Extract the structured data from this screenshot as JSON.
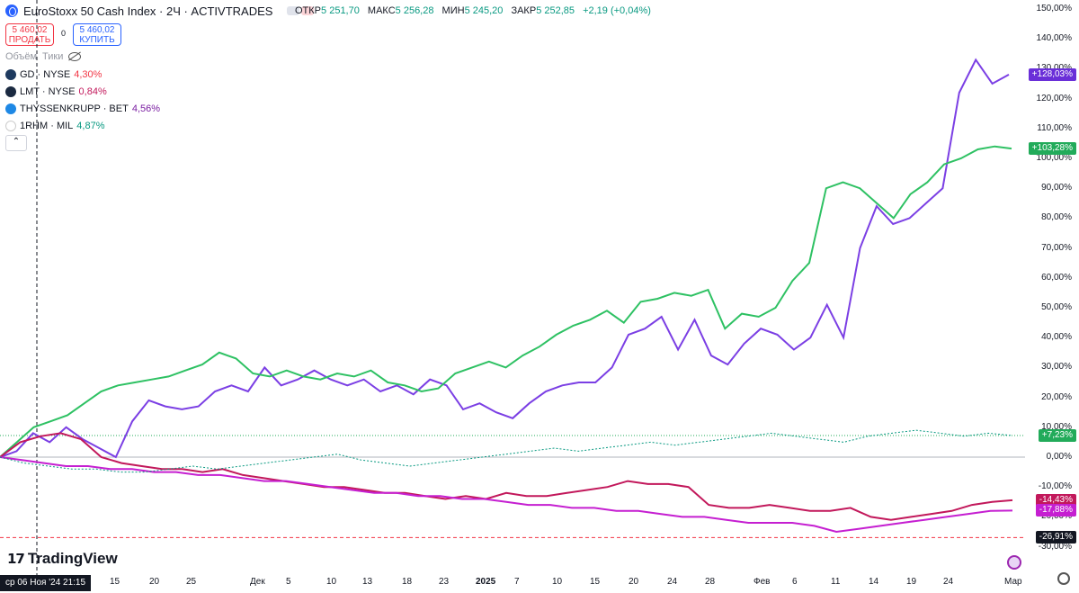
{
  "header": {
    "title": "EuroStoxx 50 Cash Index · 2Ч · ACTIVTRADES",
    "ohlc": [
      {
        "k": "ОТКР",
        "v": "5 251,70"
      },
      {
        "k": "МАКС",
        "v": "5 256,28"
      },
      {
        "k": "МИН",
        "v": "5 245,20"
      },
      {
        "k": "ЗАКР",
        "v": "5 252,85"
      }
    ],
    "change": "+2,19 (+0,04%)"
  },
  "trade": {
    "sell_price": "5 460,02",
    "sell_label": "ПРОДАТЬ",
    "spread": "0",
    "buy_price": "5 460,02",
    "buy_label": "КУПИТЬ"
  },
  "toggles": {
    "volume": "Объём",
    "ticks": "Тики"
  },
  "legend": [
    {
      "sym": "GD · NYSE",
      "pct": "4,30%",
      "color": "#f23645",
      "icon": "#1e3a5f"
    },
    {
      "sym": "LMT · NYSE",
      "pct": "0,84%",
      "color": "#c2185b",
      "icon": "#1b2a41"
    },
    {
      "sym": "THYSSENKRUPP · BET",
      "pct": "4,56%",
      "color": "#7b1fa2",
      "icon": "#1e88e5"
    },
    {
      "sym": "1RHM · MIL",
      "pct": "4,87%",
      "color": "#089981",
      "icon": "#ffffff"
    }
  ],
  "yaxis": [
    "150,00%",
    "140,00%",
    "130,00%",
    "120,00%",
    "110,00%",
    "100,00%",
    "90,00%",
    "80,00%",
    "70,00%",
    "60,00%",
    "50,00%",
    "40,00%",
    "30,00%",
    "20,00%",
    "10,00%",
    "0,00%",
    "-10,00%",
    "-20,00%",
    "-30,00%"
  ],
  "badges": [
    {
      "text": "+128,03%",
      "color": "#6a2fd8",
      "y": 128.03
    },
    {
      "text": "+103,28%",
      "color": "#22ab5a",
      "y": 103.28
    },
    {
      "text": "+7,23%",
      "color": "#22ab5a",
      "y": 7.23
    },
    {
      "text": "-14,43%",
      "color": "#c2185b",
      "y": -14.43
    },
    {
      "text": "-17,88%",
      "color": "#c51fd1",
      "y": -17.88
    },
    {
      "text": "-26,91%",
      "color": "#131722",
      "y": -26.91
    }
  ],
  "xaxis": [
    "15",
    "20",
    "25",
    "Дек",
    "5",
    "10",
    "13",
    "18",
    "23",
    "2025",
    "7",
    "10",
    "15",
    "20",
    "24",
    "28",
    "Фев",
    "6",
    "11",
    "14",
    "19",
    "24",
    "Мар"
  ],
  "crosshair_label": "ср 06 Ноя '24   21:15",
  "brand": "TradingView",
  "chart_data": {
    "type": "line",
    "ylim": [
      -30,
      150
    ],
    "x_count": 60,
    "series": [
      {
        "color": "#7b3fe4",
        "values": [
          0,
          2,
          8,
          5,
          10,
          6,
          3,
          0,
          12,
          19,
          17,
          16,
          17,
          22,
          24,
          22,
          30,
          24,
          26,
          29,
          26,
          24,
          26,
          22,
          24,
          21,
          26,
          24,
          16,
          18,
          15,
          13,
          18,
          22,
          24,
          25,
          25,
          30,
          41,
          43,
          47,
          36,
          46,
          34,
          31,
          38,
          43,
          41,
          36,
          40,
          51,
          40,
          70,
          84,
          78,
          80,
          85,
          90,
          122,
          133,
          125,
          128.03
        ]
      },
      {
        "color": "#2ec163",
        "values": [
          0,
          5,
          10,
          12,
          14,
          18,
          22,
          24,
          25,
          26,
          27,
          29,
          31,
          35,
          33,
          28,
          27,
          29,
          27,
          26,
          28,
          27,
          29,
          25,
          24,
          22,
          23,
          28,
          30,
          32,
          30,
          34,
          37,
          41,
          44,
          46,
          49,
          45,
          52,
          53,
          55,
          54,
          56,
          43,
          48,
          47,
          50,
          59,
          65,
          90,
          92,
          90,
          85,
          80,
          88,
          92,
          98,
          100,
          103,
          104,
          103.28
        ]
      },
      {
        "color": "#c2185b",
        "values": [
          0,
          5,
          7,
          8,
          6,
          0,
          -2,
          -3,
          -4,
          -4,
          -5,
          -4,
          -6,
          -7,
          -8,
          -9,
          -10,
          -10,
          -11,
          -12,
          -12,
          -13,
          -14,
          -13,
          -14,
          -12,
          -13,
          -13,
          -12,
          -11,
          -10,
          -8,
          -9,
          -9,
          -10,
          -16,
          -17,
          -17,
          -16,
          -17,
          -18,
          -18,
          -17,
          -20,
          -21,
          -20,
          -19,
          -18,
          -16,
          -15,
          -14.43
        ]
      },
      {
        "color": "#c51fd1",
        "values": [
          0,
          -1,
          -2,
          -3,
          -3,
          -4,
          -4,
          -5,
          -5,
          -6,
          -6,
          -7,
          -8,
          -8,
          -9,
          -10,
          -11,
          -12,
          -12,
          -13,
          -13,
          -14,
          -14,
          -15,
          -16,
          -16,
          -17,
          -17,
          -18,
          -18,
          -19,
          -20,
          -20,
          -21,
          -22,
          -22,
          -22,
          -23,
          -25,
          -24,
          -23,
          -22,
          -21,
          -20,
          -19,
          -18,
          -17.88
        ]
      },
      {
        "color": "#089981",
        "values": [
          0,
          -2,
          -3,
          -4,
          -4,
          -5,
          -5,
          -4,
          -3,
          -4,
          -3,
          -2,
          -1,
          0,
          1,
          -1,
          -2,
          -3,
          -2,
          -1,
          0,
          1,
          2,
          3,
          2,
          3,
          4,
          5,
          4,
          5,
          6,
          7,
          8,
          7,
          6,
          5,
          7,
          8,
          9,
          8,
          7,
          8,
          7.23
        ]
      }
    ],
    "reference_level": -26.91
  }
}
